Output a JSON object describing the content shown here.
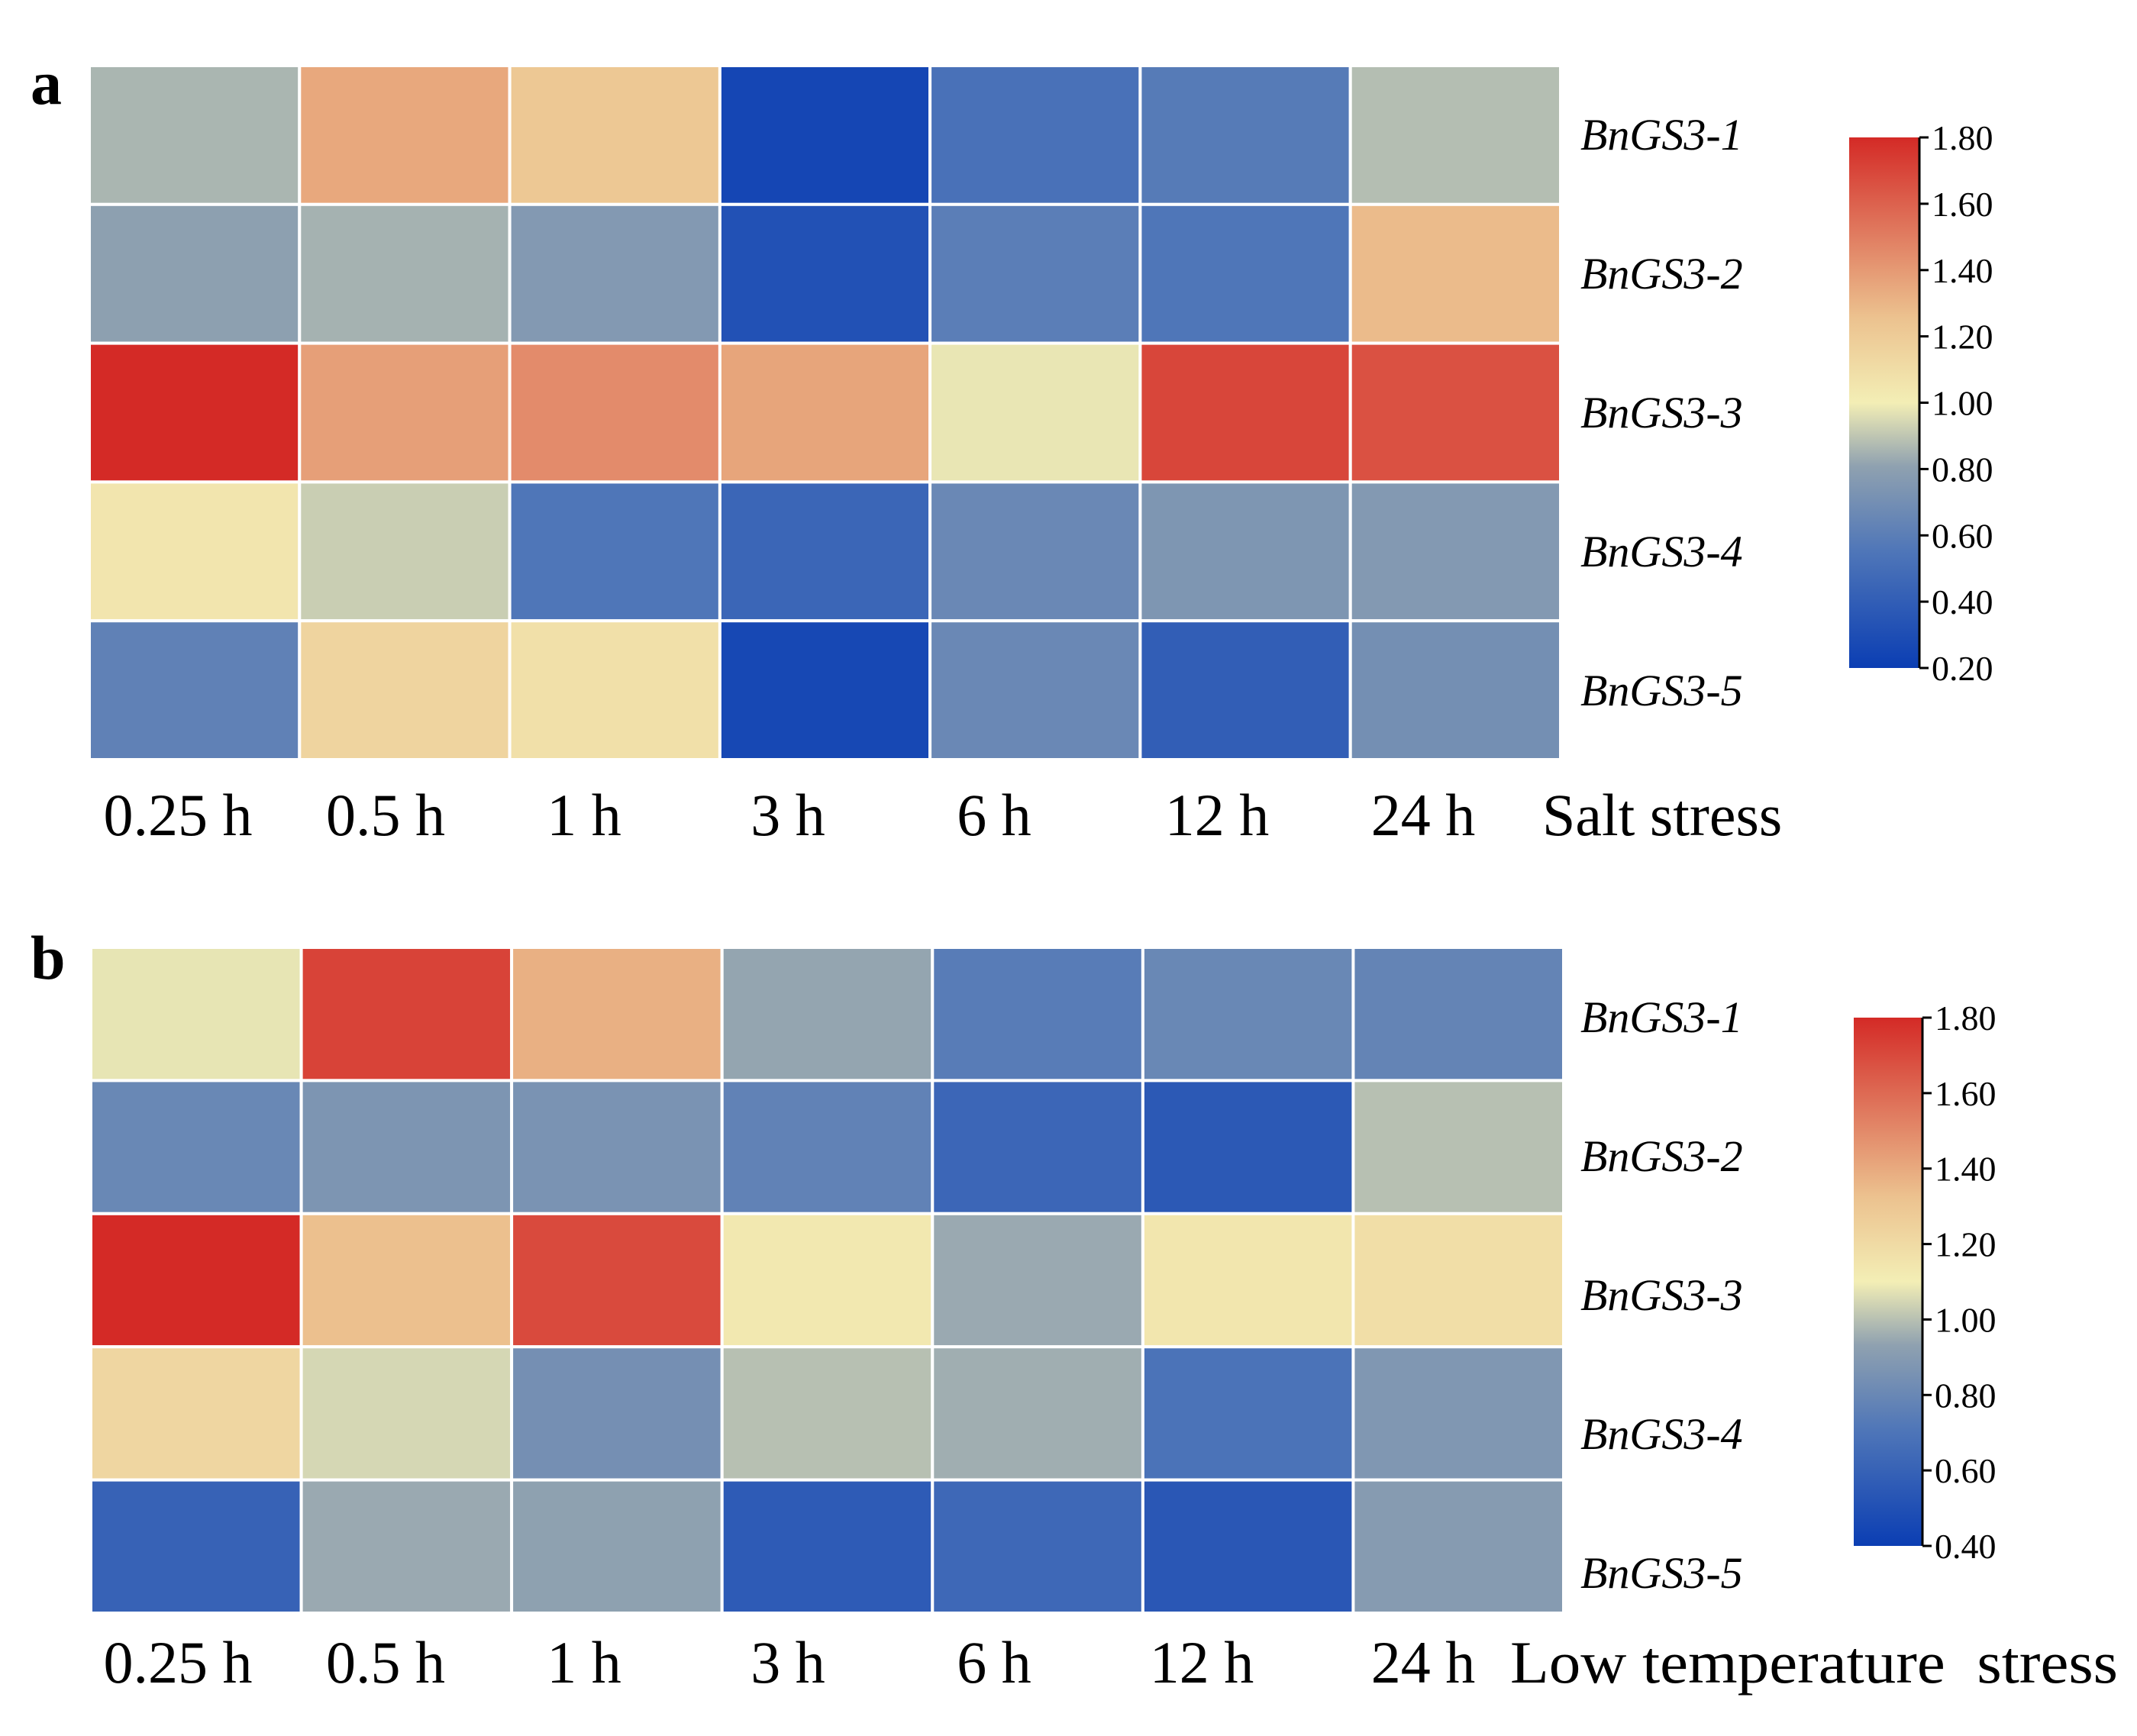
{
  "chart_data": [
    {
      "type": "heatmap",
      "panel_label": "a",
      "title": "",
      "xlabel": "Salt stress",
      "columns": [
        "0.25 h",
        "0.5 h",
        "1 h",
        "3 h",
        "6 h",
        "12 h",
        "24 h"
      ],
      "rows": [
        "BnGS3-1",
        "BnGS3-2",
        "BnGS3-3",
        "BnGS3-4",
        "BnGS3-5"
      ],
      "values": [
        [
          0.86,
          1.35,
          1.22,
          0.25,
          0.52,
          0.58,
          0.88
        ],
        [
          0.8,
          0.85,
          0.76,
          0.32,
          0.6,
          0.55,
          1.28
        ],
        [
          1.8,
          1.38,
          1.45,
          1.36,
          0.98,
          1.7,
          1.66
        ],
        [
          1.05,
          0.92,
          0.55,
          0.45,
          0.66,
          0.74,
          0.76
        ],
        [
          0.62,
          1.15,
          1.08,
          0.26,
          0.66,
          0.4,
          0.7
        ]
      ],
      "colorbar": {
        "range": [
          0.2,
          1.8
        ],
        "ticks": [
          "1.80",
          "1.60",
          "1.40",
          "1.20",
          "1.00",
          "0.80",
          "0.60",
          "0.40",
          "0.20"
        ]
      }
    },
    {
      "type": "heatmap",
      "panel_label": "b",
      "title": "",
      "xlabel": "Low temperature  stress",
      "columns": [
        "0.25 h",
        "0.5 h",
        "1 h",
        "3 h",
        "6 h",
        "12 h",
        "24 h"
      ],
      "rows": [
        "BnGS3-1",
        "BnGS3-2",
        "BnGS3-3",
        "BnGS3-4",
        "BnGS3-5"
      ],
      "values": [
        [
          1.08,
          1.72,
          1.38,
          0.94,
          0.74,
          0.8,
          0.78
        ],
        [
          0.8,
          0.87,
          0.86,
          0.77,
          0.62,
          0.55,
          1.0
        ],
        [
          1.8,
          1.33,
          1.7,
          1.13,
          0.95,
          1.14,
          1.18
        ],
        [
          1.22,
          1.05,
          0.84,
          1.0,
          0.96,
          0.69,
          0.88
        ],
        [
          0.6,
          0.95,
          0.93,
          0.56,
          0.63,
          0.54,
          0.9
        ]
      ],
      "colorbar": {
        "range": [
          0.4,
          1.8
        ],
        "ticks": [
          "1.80",
          "1.60",
          "1.40",
          "1.20",
          "1.00",
          "0.80",
          "0.60",
          "0.40"
        ]
      }
    }
  ],
  "colors": {
    "low": "#1f4fb6",
    "mid": "#f3eeb5",
    "high": "#d42a26",
    "grid": "#ffffff"
  }
}
